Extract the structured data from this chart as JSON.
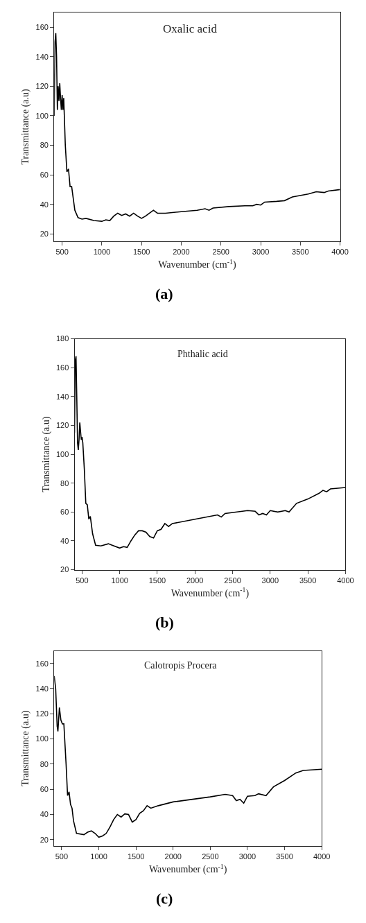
{
  "chart_data": [
    {
      "type": "line",
      "title": "Oxalic acid",
      "xlabel": "Wavenumber (cm$^{-1}$)",
      "ylabel": "Transmittance (a.u)",
      "annotations": [
        "(a)"
      ],
      "x": [
        400,
        410,
        420,
        430,
        440,
        450,
        460,
        470,
        480,
        490,
        500,
        510,
        520,
        540,
        560,
        580,
        600,
        620,
        640,
        660,
        700,
        750,
        800,
        900,
        1000,
        1050,
        1100,
        1150,
        1200,
        1250,
        1300,
        1350,
        1400,
        1450,
        1500,
        1550,
        1600,
        1650,
        1700,
        1800,
        2000,
        2200,
        2300,
        2350,
        2400,
        2600,
        2800,
        2900,
        2950,
        3000,
        3050,
        3200,
        3300,
        3400,
        3600,
        3700,
        3800,
        3850,
        4000
      ],
      "series": [
        {
          "color": "#000000",
          "values": [
            100,
            150,
            156,
            140,
            104,
            120,
            110,
            122,
            112,
            104,
            114,
            104,
            112,
            80,
            62,
            64,
            52,
            52,
            44,
            36,
            31,
            30,
            30.5,
            29,
            28.5,
            29.5,
            29,
            32,
            34,
            32.5,
            33.5,
            32,
            34,
            32,
            30.5,
            32,
            34,
            36,
            34,
            34,
            35,
            36,
            37,
            36,
            37.5,
            38.5,
            39,
            39,
            40,
            39.5,
            41.5,
            42,
            42.5,
            45,
            47,
            48.5,
            48,
            49,
            50
          ]
        }
      ],
      "xlim": [
        400,
        4000
      ],
      "xticks": [
        500,
        1000,
        1500,
        2000,
        2500,
        3000,
        3500,
        4000
      ],
      "ylim": [
        15,
        170
      ],
      "yticks": [
        20,
        40,
        60,
        80,
        100,
        120,
        140,
        160
      ],
      "marker": "none",
      "line_style": "solid"
    },
    {
      "type": "line",
      "title": "Phthalic acid",
      "xlabel": "Wavenumber (cm$^{-1}$)",
      "ylabel": "Transmittance (a.u)",
      "annotations": [
        "(b)"
      ],
      "x": [
        400,
        410,
        420,
        430,
        440,
        450,
        460,
        470,
        480,
        490,
        500,
        510,
        530,
        550,
        570,
        590,
        610,
        640,
        680,
        750,
        850,
        900,
        1000,
        1050,
        1100,
        1150,
        1200,
        1250,
        1300,
        1350,
        1400,
        1450,
        1500,
        1550,
        1600,
        1650,
        1700,
        2000,
        2300,
        2350,
        2400,
        2700,
        2800,
        2850,
        2900,
        2950,
        3000,
        3100,
        3200,
        3250,
        3350,
        3500,
        3650,
        3700,
        3750,
        3800,
        4000
      ],
      "series": [
        {
          "color": "#000000",
          "values": [
            115,
            165,
            168,
            140,
            108,
            103,
            110,
            122,
            116,
            110,
            112,
            108,
            90,
            66,
            65,
            55,
            57,
            45,
            37,
            36.5,
            38,
            37,
            35,
            36,
            35.5,
            40,
            44,
            47,
            47,
            46,
            43,
            42,
            47,
            48,
            52,
            50,
            52,
            55,
            58,
            56.5,
            59,
            61,
            60.5,
            58,
            59,
            58,
            61,
            60,
            61,
            60,
            66,
            69,
            73,
            75,
            74,
            76,
            77
          ]
        }
      ],
      "xlim": [
        400,
        4000
      ],
      "xticks": [
        500,
        1000,
        1500,
        2000,
        2500,
        3000,
        3500,
        4000
      ],
      "ylim": [
        20,
        180
      ],
      "yticks": [
        20,
        40,
        60,
        80,
        100,
        120,
        140,
        160,
        180
      ],
      "marker": "none",
      "line_style": "solid"
    },
    {
      "type": "line",
      "title": "Calotropis Procera",
      "xlabel": "Wavenumber (cm$^{-1}$)",
      "ylabel": "Transmittance (a.u)",
      "annotations": [
        "(c)"
      ],
      "x": [
        400,
        420,
        440,
        450,
        470,
        490,
        510,
        530,
        560,
        580,
        600,
        620,
        640,
        660,
        700,
        800,
        850,
        900,
        950,
        1000,
        1050,
        1100,
        1150,
        1200,
        1250,
        1300,
        1350,
        1400,
        1450,
        1500,
        1550,
        1600,
        1650,
        1700,
        1800,
        2000,
        2500,
        2700,
        2800,
        2850,
        2900,
        2950,
        3000,
        3100,
        3150,
        3250,
        3350,
        3500,
        3650,
        3750,
        4000
      ],
      "series": [
        {
          "color": "#000000",
          "values": [
            150,
            140,
            110,
            106,
            125,
            115,
            112,
            112,
            80,
            55,
            58,
            48,
            45,
            35,
            25,
            24,
            26,
            27,
            25,
            22,
            23,
            25,
            30,
            36,
            40,
            38,
            40.5,
            40,
            34,
            36,
            41,
            43,
            47,
            45,
            47,
            50,
            54,
            56,
            55,
            51,
            52,
            49,
            54.5,
            55,
            56.5,
            55,
            62,
            67,
            73,
            75,
            76
          ]
        }
      ],
      "xlim": [
        400,
        4000
      ],
      "xticks": [
        500,
        1000,
        1500,
        2000,
        2500,
        3000,
        3500,
        4000
      ],
      "ylim": [
        15,
        170
      ],
      "yticks": [
        20,
        40,
        60,
        80,
        100,
        120,
        140,
        160
      ],
      "marker": "none",
      "line_style": "solid"
    }
  ]
}
